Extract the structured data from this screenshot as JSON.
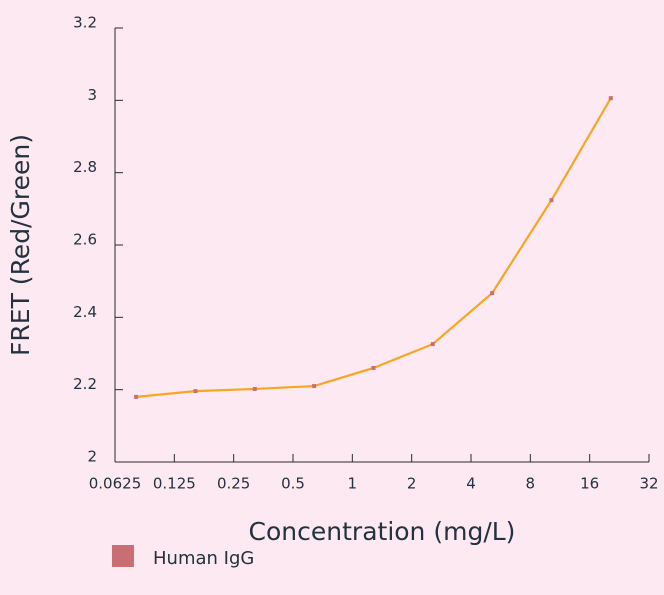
{
  "chart_data": {
    "type": "line",
    "x_label": "Concentration (mg/L)",
    "y_label": "FRET (Red/Green)",
    "x": [
      0.08,
      0.16,
      0.32,
      0.64,
      1.28,
      2.56,
      5.12,
      10.24,
      20.48
    ],
    "series": [
      {
        "name": "Human IgG",
        "color": "#f5a623",
        "marker_color": "#c96f73",
        "values": [
          2.18,
          2.196,
          2.202,
          2.21,
          2.26,
          2.326,
          2.467,
          2.724,
          3.006
        ]
      }
    ],
    "xscale": "log",
    "xlog_base": 2,
    "xlim": [
      0.0625,
      32
    ],
    "xticks": [
      0.0625,
      0.125,
      0.25,
      0.5,
      1,
      2,
      4,
      8,
      16,
      32
    ],
    "ylim": [
      2,
      3.2
    ],
    "yticks": [
      2,
      2.2,
      2.4,
      2.6,
      2.8,
      3,
      3.2
    ],
    "grid": false,
    "legend": "bottom-left"
  }
}
